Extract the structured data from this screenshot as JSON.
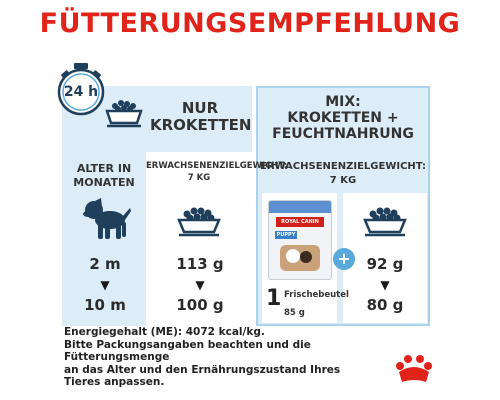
{
  "title": "FÜTTERUNGSEMPFEHLUNG",
  "clock_label": "24 h",
  "left": {
    "heading_line1": "NUR",
    "heading_line2": "KROKETTEN",
    "age_label_line1": "ALTER IN",
    "age_label_line2": "MONATEN",
    "weight_label_line1": "ERWACHSENENZIELGEWICHT:",
    "weight_label_line2": "7 KG",
    "age_start": "2 m",
    "age_end": "10 m",
    "dry_start": "113 g",
    "dry_end": "100 g"
  },
  "right": {
    "heading_line1": "MIX:",
    "heading_line2": "KROKETTEN +",
    "heading_line3": "FEUCHTNAHRUNG",
    "weight_label_line1": "ERWACHSENENZIELGEWICHT:",
    "weight_label_line2": "7 KG",
    "pouch_count": "1",
    "pouch_label": "Frischebeutel",
    "pouch_weight": "85 g",
    "pouch_brand": "ROYAL CANIN",
    "pouch_product": "PUPPY",
    "dry_start": "92 g",
    "dry_end": "80 g"
  },
  "footer": {
    "line1": "Energiegehalt (ME): 4072 kcal/kg.",
    "line2": "Bitte Packungsangaben beachten und die",
    "line3": "Fütterungsmenge",
    "line4": "an das Alter und den Ernährungszustand Ihres",
    "line5": "Tieres anpassen."
  },
  "colors": {
    "title_red": "#e2231a",
    "panel_blue": "#dcedf8",
    "accent_blue": "#5aa9dc",
    "dark_navy": "#1f3f5b"
  }
}
